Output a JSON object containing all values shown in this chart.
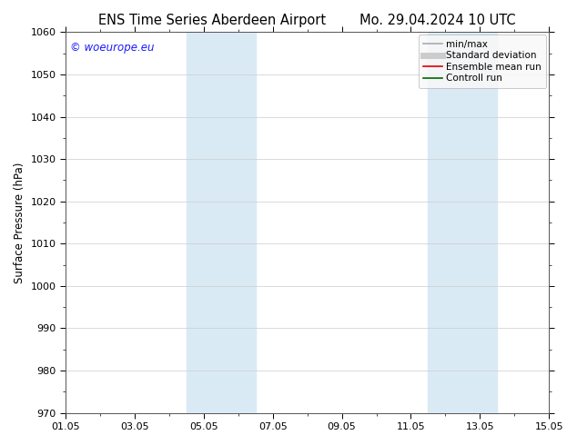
{
  "title_left": "ENS Time Series Aberdeen Airport",
  "title_right": "Mo. 29.04.2024 10 UTC",
  "ylabel": "Surface Pressure (hPa)",
  "ylim": [
    970,
    1060
  ],
  "yticks": [
    970,
    980,
    990,
    1000,
    1010,
    1020,
    1030,
    1040,
    1050,
    1060
  ],
  "xlim_start": 0,
  "xlim_end": 14,
  "xtick_positions": [
    0,
    2,
    4,
    6,
    8,
    10,
    12,
    14
  ],
  "xtick_labels": [
    "01.05",
    "03.05",
    "05.05",
    "07.05",
    "09.05",
    "11.05",
    "13.05",
    "15.05"
  ],
  "shaded_bands": [
    {
      "xmin": 3.5,
      "xmax": 5.5
    },
    {
      "xmin": 10.5,
      "xmax": 12.5
    }
  ],
  "shade_color": "#daeaf5",
  "watermark": "© woeurope.eu",
  "legend_entries": [
    {
      "label": "min/max",
      "color": "#aaaaaa",
      "lw": 1.2,
      "thick": false
    },
    {
      "label": "Standard deviation",
      "color": "#cccccc",
      "lw": 5,
      "thick": true
    },
    {
      "label": "Ensemble mean run",
      "color": "#dd0000",
      "lw": 1.2,
      "thick": false
    },
    {
      "label": "Controll run",
      "color": "#006600",
      "lw": 1.2,
      "thick": false
    }
  ],
  "background_color": "#ffffff",
  "grid_color": "#cccccc",
  "font_size_title": 10.5,
  "font_size_axis": 8.5,
  "font_size_tick": 8,
  "font_size_legend": 7.5,
  "font_size_watermark": 8.5
}
